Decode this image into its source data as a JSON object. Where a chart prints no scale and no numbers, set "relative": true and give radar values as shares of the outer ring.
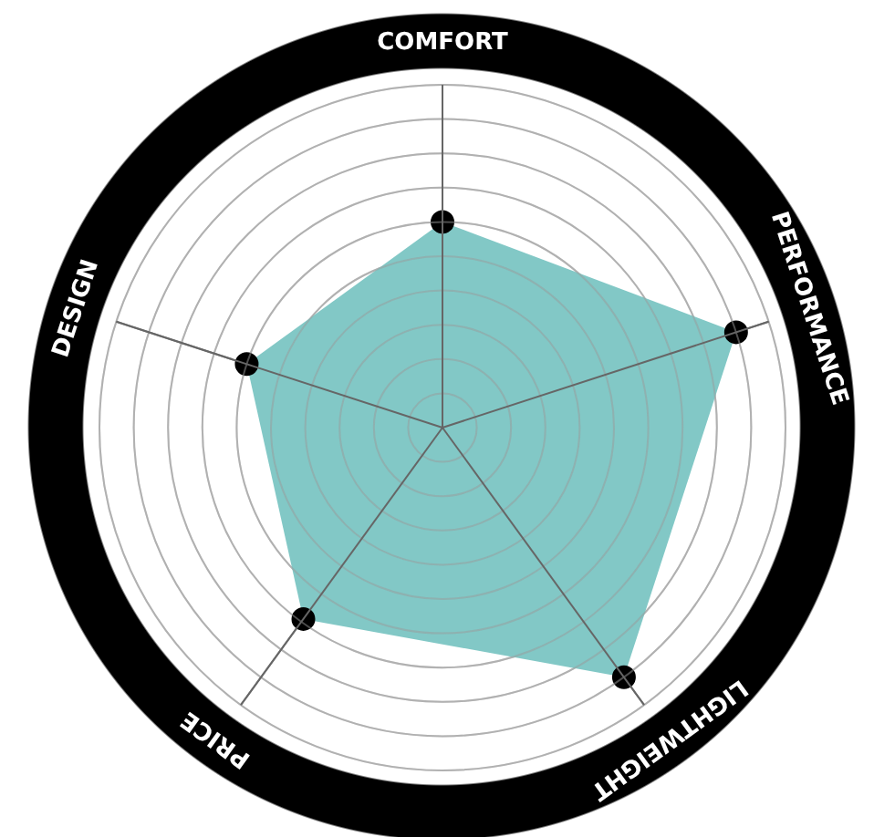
{
  "chart_data": {
    "type": "radar",
    "relative": true,
    "grid": true,
    "marker": "circle",
    "categories": [
      "COMFORT",
      "PERFORMANCE",
      "LIGHTWEIGHT",
      "PRICE",
      "DESIGN"
    ],
    "series": [
      {
        "color": "#82c8c6",
        "values": [
          0.6,
          0.9,
          0.9,
          0.69,
          0.6
        ]
      }
    ]
  }
}
